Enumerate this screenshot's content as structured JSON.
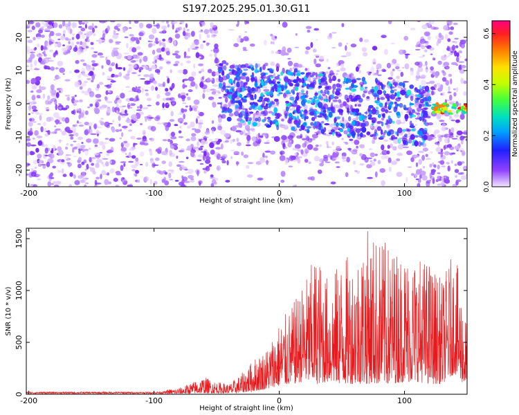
{
  "title": "S197.2025.295.01.30.G11",
  "chart_data": [
    {
      "type": "heatmap",
      "title": "S197.2025.295.01.30.G11",
      "xlabel": "Height of straight line (km)",
      "ylabel": "Frequency (Hz)",
      "xlim": [
        -202,
        150
      ],
      "ylim": [
        -25,
        25
      ],
      "x_ticks": [
        -200,
        -100,
        0,
        100
      ],
      "y_ticks": [
        -20,
        -10,
        0,
        10,
        20
      ],
      "colorbar": {
        "label": "Normalized spectral amplitude",
        "range": [
          0.0,
          0.65
        ],
        "ticks": [
          0.0,
          0.2,
          0.4,
          0.6
        ],
        "colormap": [
          "#f2e6ff",
          "#9040ff",
          "#2020ff",
          "#00a0ff",
          "#00e0c0",
          "#40ff40",
          "#c0ff00",
          "#ffe000",
          "#ff8000",
          "#ff2020",
          "#ff0080"
        ]
      },
      "regions": [
        {
          "x_range": [
            -202,
            -48
          ],
          "freq_range": [
            -25,
            25
          ],
          "amplitude": "low (~0.0-0.05)"
        },
        {
          "x_range": [
            -48,
            120
          ],
          "freq_range": [
            -15,
            10
          ],
          "amplitude": "moderate (~0.05-0.2)"
        },
        {
          "x_range": [
            120,
            150
          ],
          "freq_center": -1.5,
          "amplitude": "peak (~0.6)"
        }
      ]
    },
    {
      "type": "line",
      "xlabel": "Height of straight line (km)",
      "ylabel": "SNR (10 * v/v)",
      "xlim": [
        -202,
        150
      ],
      "ylim": [
        0,
        1600
      ],
      "x_ticks": [
        -200,
        -100,
        0,
        100
      ],
      "y_ticks": [
        0,
        500,
        1000,
        1500
      ],
      "series": [
        {
          "name": "SNR",
          "color": "#e8191c",
          "envelope_x": [
            -202,
            -100,
            -80,
            -60,
            -50,
            -40,
            -30,
            -20,
            -10,
            0,
            10,
            20,
            30,
            40,
            50,
            60,
            70,
            80,
            90,
            100,
            110,
            120,
            130,
            140,
            150
          ],
          "envelope_max": [
            35,
            35,
            60,
            170,
            120,
            100,
            200,
            350,
            450,
            700,
            850,
            1100,
            1380,
            1100,
            1330,
            1350,
            1600,
            1520,
            1420,
            1400,
            1350,
            1300,
            1100,
            1400,
            700
          ],
          "envelope_min": [
            5,
            5,
            5,
            10,
            10,
            10,
            15,
            30,
            50,
            80,
            100,
            120,
            100,
            120,
            100,
            100,
            100,
            100,
            100,
            120,
            120,
            100,
            100,
            200,
            60
          ]
        }
      ]
    }
  ]
}
